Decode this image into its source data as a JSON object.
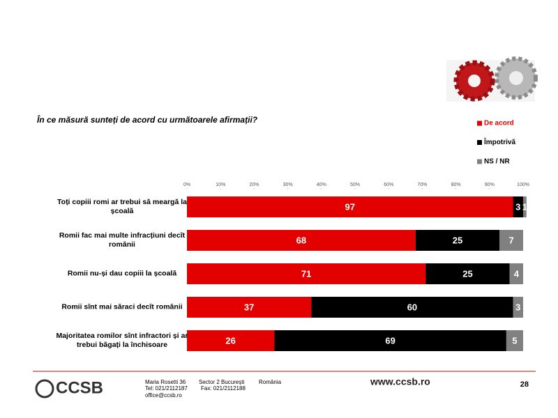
{
  "question": "În ce măsură sunteți de acord cu următoarele afirmații?",
  "chart_data": {
    "type": "stacked-hbar",
    "categories": [
      "Toți copiii romi ar trebui să meargă la școală",
      "Romii fac mai multe infracțiuni decît românii",
      "Romii nu-și dau copiii la școală",
      "Romii sînt mai săraci decît românii",
      "Majoritatea romilor sînt infractori și ar trebui băgați la închisoare"
    ],
    "series": [
      {
        "name": "De acord",
        "color": "#e30000",
        "values": [
          97,
          68,
          71,
          37,
          26
        ]
      },
      {
        "name": "Împotrivă",
        "color": "#000000",
        "values": [
          3,
          25,
          25,
          60,
          69
        ]
      },
      {
        "name": "NS / NR",
        "color": "#808080",
        "values": [
          1,
          7,
          4,
          3,
          5
        ]
      }
    ],
    "xlim": [
      0,
      100
    ],
    "xticks": [
      {
        "value": 0,
        "label": "0%"
      },
      {
        "value": 10,
        "label": "10%"
      },
      {
        "value": 20,
        "label": "20%"
      },
      {
        "value": 30,
        "label": "30%"
      },
      {
        "value": 40,
        "label": "40%"
      },
      {
        "value": 50,
        "label": "50%"
      },
      {
        "value": 60,
        "label": "60%"
      },
      {
        "value": 70,
        "label": "70%"
      },
      {
        "value": 80,
        "label": "80%"
      },
      {
        "value": 90,
        "label": "90%"
      },
      {
        "value": 100,
        "label": "100%"
      }
    ],
    "legend": "top-right"
  },
  "footer": {
    "logo": "CCSB",
    "address": "Maria Rosetti 36",
    "sector": "Sector 2  București",
    "country": "România",
    "tel": "Tel: 021/2112187",
    "fax": "Fax: 021/2112188",
    "email": "office@ccsb.ro",
    "website": "www.ccsb.ro",
    "page": "28"
  }
}
